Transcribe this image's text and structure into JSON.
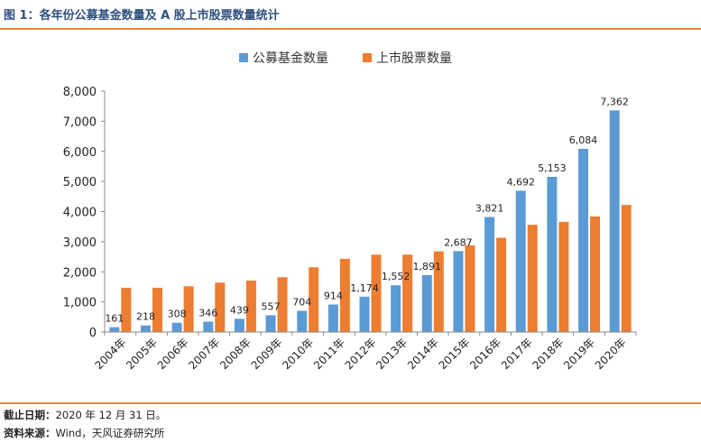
{
  "figure": {
    "title": "图 1：各年份公募基金数量及 A 股上市股票数量统计"
  },
  "footer": {
    "date_label": "截止日期：",
    "date_value": "2020 年 12 月 31 日。",
    "source_label": "资料来源：",
    "source_value": "Wind，天风证券研究所"
  },
  "chart_data": {
    "type": "bar",
    "title": "",
    "xlabel": "",
    "ylabel": "",
    "ylim": [
      0,
      8000
    ],
    "yticks": [
      "0",
      "1,000",
      "2,000",
      "3,000",
      "4,000",
      "5,000",
      "6,000",
      "7,000",
      "8,000"
    ],
    "grid": false,
    "legend_position": "top-center",
    "categories": [
      "2004年",
      "2005年",
      "2006年",
      "2007年",
      "2008年",
      "2009年",
      "2010年",
      "2011年",
      "2012年",
      "2013年",
      "2014年",
      "2015年",
      "2016年",
      "2017年",
      "2018年",
      "2019年",
      "2020年"
    ],
    "series": [
      {
        "name": "公募基金数量",
        "color": "#5b9bd5",
        "values": [
          161,
          218,
          308,
          346,
          439,
          557,
          704,
          914,
          1174,
          1552,
          1891,
          2687,
          3821,
          4692,
          5153,
          6084,
          7362
        ],
        "labels": [
          "161",
          "218",
          "308",
          "346",
          "439",
          "557",
          "704",
          "914",
          "1,174",
          "1,552",
          "1,891",
          "2,687",
          "3,821",
          "4,692",
          "5,153",
          "6,084",
          "7,362"
        ]
      },
      {
        "name": "上市股票数量",
        "color": "#ed7d31",
        "values": [
          1470,
          1470,
          1520,
          1640,
          1710,
          1820,
          2150,
          2430,
          2570,
          2570,
          2680,
          2880,
          3130,
          3560,
          3660,
          3840,
          4220
        ]
      }
    ]
  }
}
